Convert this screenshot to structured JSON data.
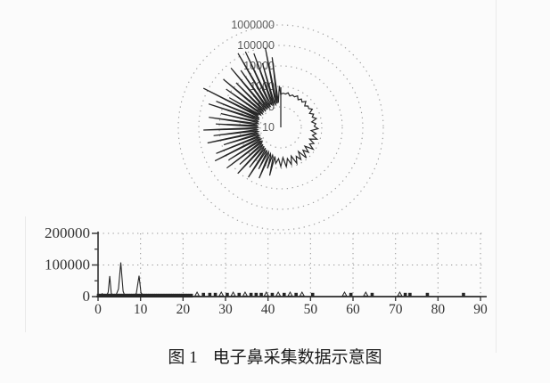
{
  "colors": {
    "background": "#fbfbfb",
    "ink": "#262626",
    "grid_dots": "#979797",
    "polar_label": "#5a5a5a",
    "axis_label": "#333333",
    "axis_line": "#3d3d3d"
  },
  "figure": {
    "caption_label": "图 1",
    "caption_text": "电子鼻采集数据示意图"
  },
  "chart_data": [
    {
      "type": "line",
      "subtype": "polar-spectrum",
      "title": "",
      "radial_axis_scale": "log",
      "radial_ticks": [
        10,
        100,
        1000,
        10000,
        100000,
        1000000
      ],
      "radial_tick_labels": [
        "10",
        "100",
        "1000",
        "10000",
        "100000",
        "1000000"
      ],
      "ring_values": [
        100,
        1000,
        10000,
        100000,
        1000000
      ],
      "rlim": [
        10,
        1000000
      ],
      "grid": "dotted-rings",
      "legend": "none",
      "points_deg_value": [
        [
          90,
          420
        ],
        [
          92,
          1050
        ],
        [
          94,
          300
        ],
        [
          95.5,
          160
        ],
        [
          97,
          28000
        ],
        [
          98.5,
          150
        ],
        [
          99.5,
          180
        ],
        [
          101,
          90000
        ],
        [
          102.5,
          140
        ],
        [
          104.5,
          170
        ],
        [
          106,
          18000
        ],
        [
          107.5,
          130
        ],
        [
          108.5,
          160
        ],
        [
          110,
          70000
        ],
        [
          111.5,
          150
        ],
        [
          113.5,
          170
        ],
        [
          115,
          120000
        ],
        [
          116.5,
          140
        ],
        [
          118.5,
          160
        ],
        [
          120,
          150000
        ],
        [
          121.5,
          130
        ],
        [
          123.5,
          170
        ],
        [
          125,
          25000
        ],
        [
          126.5,
          140
        ],
        [
          128.5,
          160
        ],
        [
          130,
          60000
        ],
        [
          131.5,
          150
        ],
        [
          133.5,
          130
        ],
        [
          135,
          12000
        ],
        [
          136.5,
          160
        ],
        [
          138.5,
          140
        ],
        [
          140,
          45000
        ],
        [
          141.5,
          150
        ],
        [
          143.5,
          130
        ],
        [
          145,
          18000
        ],
        [
          146.5,
          160
        ],
        [
          148.5,
          140
        ],
        [
          150,
          8000
        ],
        [
          151.2,
          170
        ],
        [
          152,
          200
        ],
        [
          153.2,
          170000
        ],
        [
          154.6,
          180
        ],
        [
          156.5,
          140
        ],
        [
          158,
          25000
        ],
        [
          159.5,
          150
        ],
        [
          160.5,
          130
        ],
        [
          162,
          50000
        ],
        [
          163.5,
          160
        ],
        [
          165.5,
          140
        ],
        [
          167,
          10000
        ],
        [
          168.5,
          150
        ],
        [
          170.5,
          130
        ],
        [
          172,
          35000
        ],
        [
          173.5,
          160
        ],
        [
          175.5,
          140
        ],
        [
          177,
          15000
        ],
        [
          178.5,
          150
        ],
        [
          180.5,
          130
        ],
        [
          182,
          60000
        ],
        [
          183.5,
          160
        ],
        [
          185.5,
          140
        ],
        [
          187,
          20000
        ],
        [
          188.5,
          150
        ],
        [
          190.5,
          130
        ],
        [
          192,
          45000
        ],
        [
          193.5,
          160
        ],
        [
          195.5,
          140
        ],
        [
          197,
          8000
        ],
        [
          198.5,
          150
        ],
        [
          200.5,
          130
        ],
        [
          202,
          25000
        ],
        [
          203.5,
          160
        ],
        [
          205.5,
          140
        ],
        [
          207,
          40000
        ],
        [
          208.5,
          150
        ],
        [
          210.5,
          130
        ],
        [
          212,
          10000
        ],
        [
          213.5,
          160
        ],
        [
          215.5,
          140
        ],
        [
          217,
          20000
        ],
        [
          218.5,
          150
        ],
        [
          220.5,
          180
        ],
        [
          222,
          5000
        ],
        [
          223.5,
          160
        ],
        [
          225.5,
          200
        ],
        [
          227,
          12000
        ],
        [
          228.5,
          170
        ],
        [
          230.5,
          220
        ],
        [
          232,
          3000
        ],
        [
          233.5,
          180
        ],
        [
          235.5,
          240
        ],
        [
          237,
          8000
        ],
        [
          238.5,
          200
        ],
        [
          240.5,
          260
        ],
        [
          242,
          2000
        ],
        [
          243.5,
          220
        ],
        [
          245.5,
          280
        ],
        [
          247,
          5000
        ],
        [
          248.5,
          240
        ],
        [
          250.5,
          300
        ],
        [
          252,
          1300
        ],
        [
          253.5,
          260
        ],
        [
          255.5,
          320
        ],
        [
          257,
          2600
        ],
        [
          258.5,
          280
        ],
        [
          262,
          600
        ],
        [
          266,
          340
        ],
        [
          270,
          820
        ],
        [
          274,
          300
        ],
        [
          278,
          900
        ],
        [
          282,
          360
        ],
        [
          286,
          760
        ],
        [
          290,
          310
        ],
        [
          294,
          840
        ],
        [
          298,
          400
        ],
        [
          302,
          700
        ],
        [
          306,
          290
        ],
        [
          310,
          880
        ],
        [
          314,
          360
        ],
        [
          318,
          660
        ],
        [
          322,
          310
        ],
        [
          326,
          800
        ],
        [
          330,
          420
        ],
        [
          334,
          620
        ],
        [
          338,
          330
        ],
        [
          342,
          720
        ],
        [
          346,
          390
        ],
        [
          350,
          560
        ],
        [
          354,
          310
        ],
        [
          358,
          660
        ],
        [
          362,
          430
        ],
        [
          366,
          520
        ],
        [
          370,
          340
        ],
        [
          374,
          610
        ],
        [
          378,
          410
        ],
        [
          382,
          530
        ],
        [
          386,
          360
        ],
        [
          390,
          590
        ],
        [
          394,
          440
        ],
        [
          398,
          490
        ],
        [
          402,
          370
        ],
        [
          406,
          570
        ],
        [
          410,
          410
        ],
        [
          414,
          510
        ],
        [
          418,
          390
        ],
        [
          422,
          550
        ],
        [
          426,
          430
        ],
        [
          430,
          480
        ],
        [
          434,
          390
        ],
        [
          438,
          530
        ],
        [
          442,
          440
        ],
        [
          446,
          470
        ],
        [
          450,
          420
        ]
      ]
    },
    {
      "type": "line",
      "title": "",
      "xlabel": "",
      "ylabel": "",
      "xlim": [
        0,
        90
      ],
      "ylim": [
        0,
        200000
      ],
      "x_ticks": [
        0,
        10,
        20,
        30,
        40,
        50,
        60,
        70,
        80,
        90
      ],
      "x_tick_labels": [
        "0",
        "10",
        "20",
        "30",
        "40",
        "50",
        "60",
        "70",
        "80",
        "90"
      ],
      "y_ticks": [
        0,
        100000,
        200000
      ],
      "y_tick_labels": [
        "0",
        "100000",
        "200000"
      ],
      "y_minor_ticks": [
        50000,
        150000
      ],
      "grid": "dotted",
      "legend": "none",
      "points": [
        [
          0,
          300
        ],
        [
          0.6,
          2500
        ],
        [
          1.0,
          9000
        ],
        [
          1.4,
          1200
        ],
        [
          2.0,
          2200
        ],
        [
          2.4,
          14000
        ],
        [
          2.75,
          65000
        ],
        [
          3.1,
          11000
        ],
        [
          3.5,
          1800
        ],
        [
          4.2,
          3500
        ],
        [
          4.8,
          24000
        ],
        [
          5.35,
          108000
        ],
        [
          5.9,
          17000
        ],
        [
          6.3,
          2800
        ],
        [
          7.0,
          6000
        ],
        [
          7.5,
          1400
        ],
        [
          8.2,
          3200
        ],
        [
          9.0,
          9500
        ],
        [
          9.65,
          66000
        ],
        [
          10.1,
          13000
        ],
        [
          10.6,
          2400
        ],
        [
          11.2,
          4800
        ],
        [
          12.0,
          1100
        ],
        [
          13.0,
          2800
        ],
        [
          14.0,
          900
        ],
        [
          15.0,
          1900
        ],
        [
          16.0,
          800
        ],
        [
          17.0,
          1500
        ],
        [
          18.5,
          700
        ],
        [
          20.0,
          1100
        ],
        [
          21.5,
          600
        ],
        [
          23,
          450
        ],
        [
          25,
          380
        ],
        [
          27,
          420
        ],
        [
          29,
          350
        ],
        [
          31,
          400
        ],
        [
          33,
          360
        ],
        [
          35,
          430
        ],
        [
          37,
          340
        ],
        [
          39,
          410
        ],
        [
          41,
          350
        ],
        [
          43,
          390
        ],
        [
          45,
          330
        ],
        [
          47,
          400
        ],
        [
          49,
          340
        ],
        [
          52,
          310
        ],
        [
          56,
          370
        ],
        [
          60,
          330
        ],
        [
          64,
          300
        ],
        [
          68,
          360
        ],
        [
          72,
          320
        ],
        [
          76,
          300
        ],
        [
          80,
          350
        ],
        [
          84,
          310
        ],
        [
          88,
          340
        ],
        [
          90,
          320
        ]
      ],
      "dense_marker_range": {
        "from": 0,
        "to": 22.2,
        "step": 0.45
      },
      "scatter_markers": {
        "triangle_x": [
          23.3,
          29,
          31.8,
          34.6,
          39.6,
          42.4,
          45.2,
          48,
          58,
          63,
          71
        ],
        "square_x": [
          24.8,
          26.3,
          27.6,
          30.4,
          33.2,
          36,
          37.2,
          38.4,
          41,
          43.8,
          46.6,
          50.5,
          59.5,
          64.5,
          72.3,
          73.4,
          77.5,
          86
        ]
      }
    }
  ]
}
